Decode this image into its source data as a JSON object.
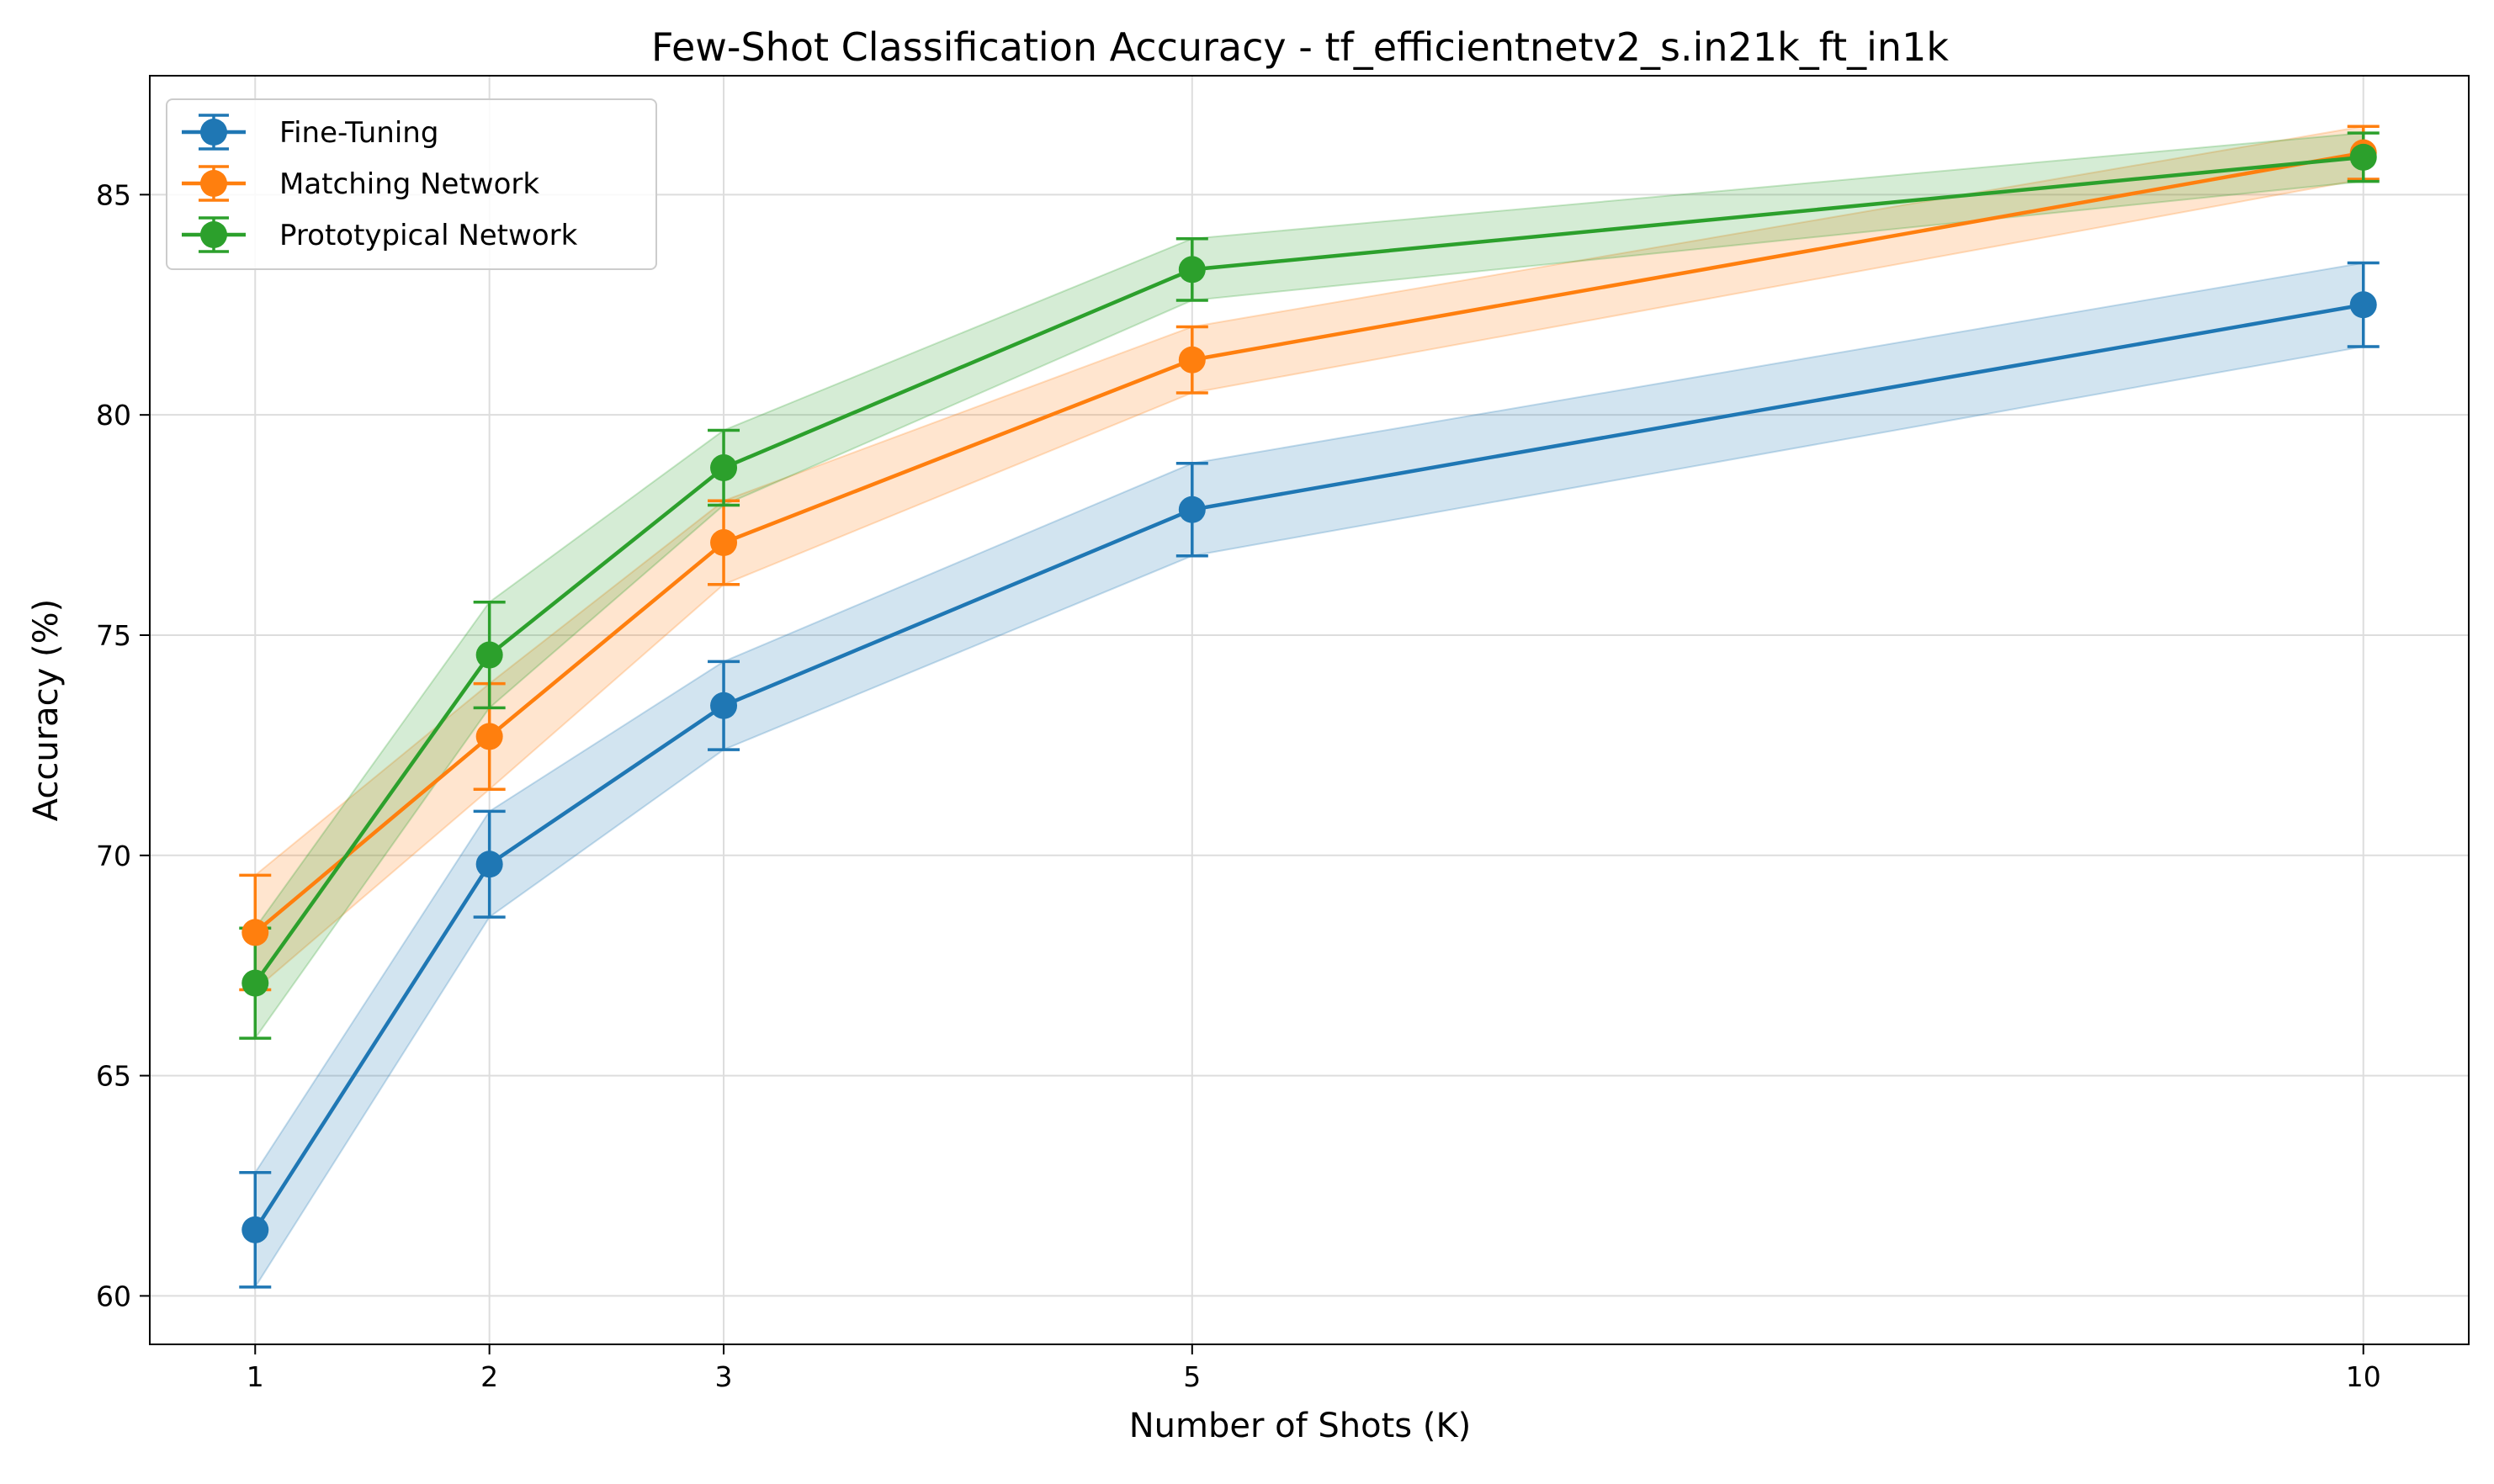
{
  "chart_data": {
    "type": "line",
    "title": "Few-Shot Classification Accuracy - tf_efficientnetv2_s.in21k_ft_in1k",
    "xlabel": "Number of Shots (K)",
    "ylabel": "Accuracy (%)",
    "x": [
      1,
      2,
      3,
      5,
      10
    ],
    "x_ticks": [
      "1",
      "2",
      "3",
      "5",
      "10"
    ],
    "y_ticks": [
      "60",
      "65",
      "70",
      "75",
      "80",
      "85"
    ],
    "xlim": [
      0.55,
      10.45
    ],
    "ylim": [
      58.9,
      87.7
    ],
    "grid": true,
    "legend_position": "upper left",
    "series": [
      {
        "name": "Fine-Tuning",
        "color": "#1f77b4",
        "values": [
          61.5,
          69.8,
          73.4,
          77.85,
          82.5
        ],
        "errors": [
          1.3,
          1.2,
          1.0,
          1.05,
          0.95
        ]
      },
      {
        "name": "Matching Network",
        "color": "#ff7f0e",
        "values": [
          68.25,
          72.7,
          77.1,
          81.25,
          85.95
        ],
        "errors": [
          1.3,
          1.2,
          0.95,
          0.75,
          0.6
        ]
      },
      {
        "name": "Prototypical Network",
        "color": "#2ca02c",
        "values": [
          67.1,
          74.55,
          78.8,
          83.3,
          85.85
        ],
        "errors": [
          1.25,
          1.2,
          0.85,
          0.7,
          0.55
        ]
      }
    ]
  }
}
